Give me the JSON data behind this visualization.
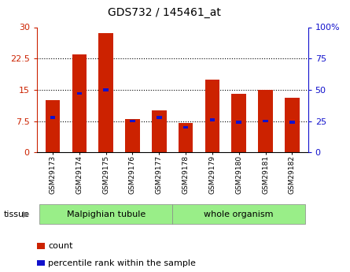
{
  "title": "GDS732 / 145461_at",
  "samples": [
    "GSM29173",
    "GSM29174",
    "GSM29175",
    "GSM29176",
    "GSM29177",
    "GSM29178",
    "GSM29179",
    "GSM29180",
    "GSM29181",
    "GSM29182"
  ],
  "counts": [
    12.5,
    23.5,
    28.5,
    8.0,
    10.0,
    7.0,
    17.5,
    14.0,
    15.0,
    13.0
  ],
  "percentiles": [
    28,
    47,
    50,
    25,
    28,
    20,
    26,
    24,
    25,
    24
  ],
  "tissue_labels": [
    "Malpighian tubule",
    "whole organism"
  ],
  "tissue_split": 5,
  "bar_color": "#cc2200",
  "percentile_color": "#1111cc",
  "ylim_left": [
    0,
    30
  ],
  "ylim_right": [
    0,
    100
  ],
  "yticks_left": [
    0,
    7.5,
    15,
    22.5,
    30
  ],
  "yticks_right": [
    0,
    25,
    50,
    75,
    100
  ],
  "grid_lines": [
    7.5,
    15,
    22.5
  ],
  "bg_color": "#ffffff",
  "bar_width": 0.55,
  "legend_count_label": "count",
  "legend_pct_label": "percentile rank within the sample",
  "tissue_green": "#99ee88"
}
